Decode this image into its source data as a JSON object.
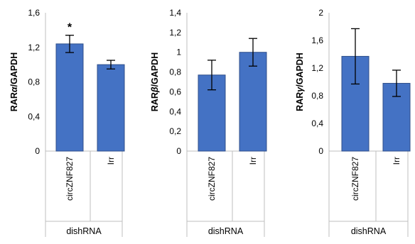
{
  "colors": {
    "bar_fill": "#4472C4",
    "bar_stroke": "#2F4F8A",
    "axis": "#BFBFBF",
    "text": "#000000"
  },
  "chart_data": [
    {
      "type": "bar",
      "categories": [
        "circZNF827",
        "Irr"
      ],
      "values": [
        1.24,
        1.0
      ],
      "errors": [
        0.1,
        0.05
      ],
      "ylabel_prefix": "RAR",
      "ylabel_greek": "α",
      "ylabel_suffix": "/GAPDH",
      "xlabel": "dishRNA",
      "ylim": [
        0,
        1.6
      ],
      "yticks": [
        "0",
        "0,4",
        "0,8",
        "1,2",
        "1,6"
      ],
      "ytick_values": [
        0,
        0.4,
        0.8,
        1.2,
        1.6
      ],
      "annotations": [
        "*",
        ""
      ],
      "grid": false
    },
    {
      "type": "bar",
      "categories": [
        "circZNF827",
        "Irr"
      ],
      "values": [
        0.77,
        1.0
      ],
      "errors": [
        0.15,
        0.14
      ],
      "ylabel_prefix": "RAR",
      "ylabel_greek": "β",
      "ylabel_suffix": "/GAPDH",
      "xlabel": "dishRNA",
      "ylim": [
        0,
        1.4
      ],
      "yticks": [
        "0",
        "0,2",
        "0,4",
        "0,6",
        "0,8",
        "1",
        "1,2",
        "1,4"
      ],
      "ytick_values": [
        0,
        0.2,
        0.4,
        0.6,
        0.8,
        1.0,
        1.2,
        1.4
      ],
      "annotations": [
        "",
        ""
      ],
      "grid": false
    },
    {
      "type": "bar",
      "categories": [
        "circZNF827",
        "Irr"
      ],
      "values": [
        1.37,
        0.98
      ],
      "errors": [
        0.4,
        0.19
      ],
      "ylabel_prefix": "RAR",
      "ylabel_greek": "γ",
      "ylabel_suffix": "/GAPDH",
      "xlabel": "dishRNA",
      "ylim": [
        0,
        2.0
      ],
      "yticks": [
        "0",
        "0,4",
        "0,8",
        "1,2",
        "1,6",
        "2"
      ],
      "ytick_values": [
        0,
        0.4,
        0.8,
        1.2,
        1.6,
        2.0
      ],
      "annotations": [
        "",
        ""
      ],
      "grid": false
    }
  ]
}
